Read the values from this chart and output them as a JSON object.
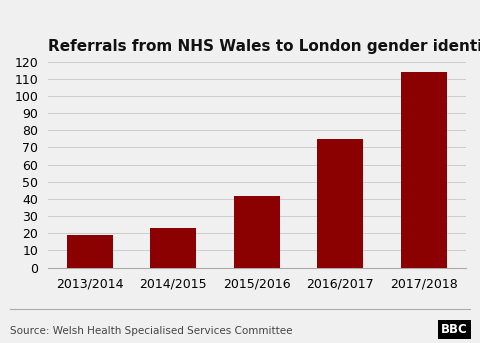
{
  "title": "Referrals from NHS Wales to London gender identity clinic",
  "categories": [
    "2013/2014",
    "2014/2015",
    "2015/2016",
    "2016/2017",
    "2017/2018"
  ],
  "values": [
    19,
    23,
    42,
    75,
    114
  ],
  "bar_color": "#8B0000",
  "background_color": "#f0f0f0",
  "ylim": [
    0,
    120
  ],
  "yticks": [
    0,
    10,
    20,
    30,
    40,
    50,
    60,
    70,
    80,
    90,
    100,
    110,
    120
  ],
  "ylabel": "",
  "xlabel": "",
  "title_fontsize": 11,
  "tick_fontsize": 9,
  "source_text": "Source: Welsh Health Specialised Services Committee",
  "source_fontsize": 7.5,
  "bbc_text": "BBC",
  "grid_color": "#cccccc",
  "spine_color": "#aaaaaa"
}
